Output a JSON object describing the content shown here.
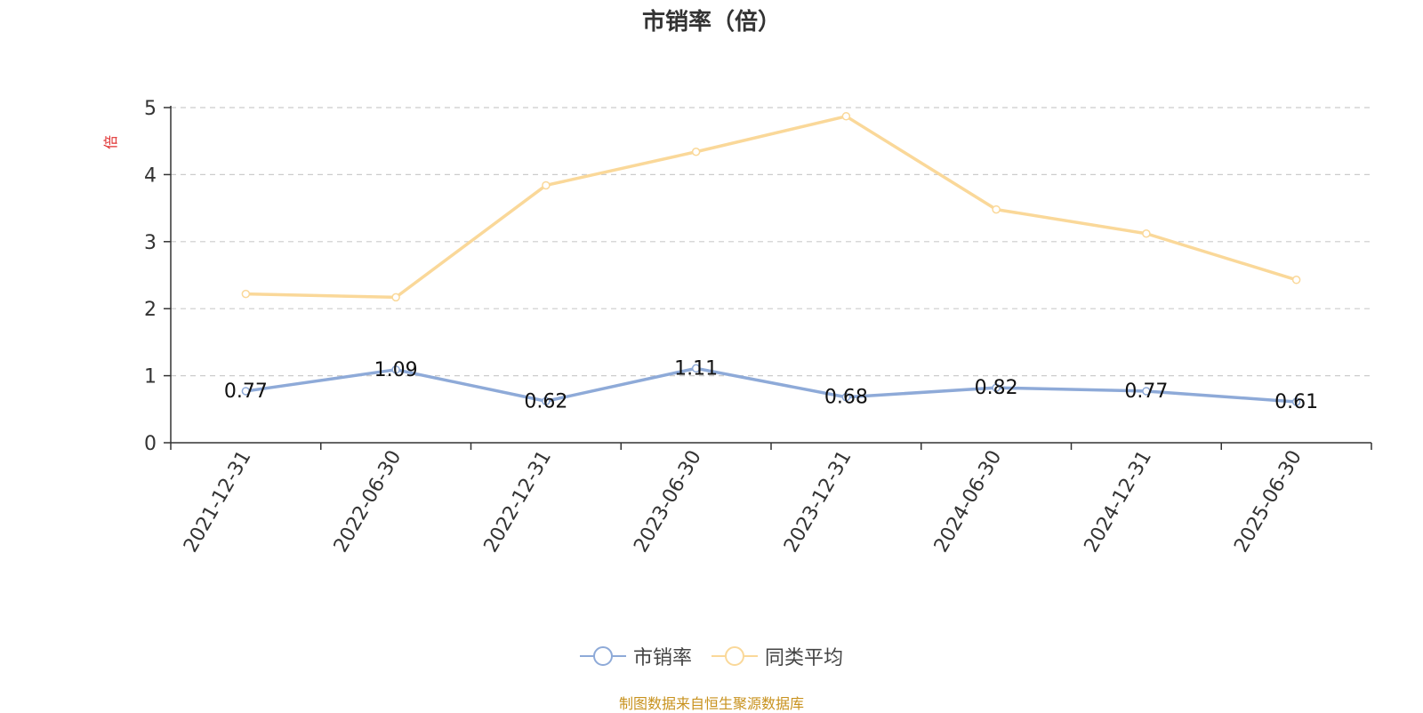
{
  "chart_data": {
    "type": "line",
    "title": "市销率（倍）",
    "ylabel": "倍",
    "xlabel": "",
    "ylim": [
      0,
      5
    ],
    "yticks": [
      "0",
      "1",
      "2",
      "3",
      "4",
      "5"
    ],
    "categories": [
      "2021-12-31",
      "2022-06-30",
      "2022-12-31",
      "2023-06-30",
      "2023-12-31",
      "2024-06-30",
      "2024-12-31",
      "2025-06-30"
    ],
    "series": [
      {
        "name": "市销率",
        "color": "#8eaad8",
        "values": [
          0.77,
          1.09,
          0.62,
          1.11,
          0.68,
          0.82,
          0.77,
          0.61
        ],
        "labels": [
          "0.77",
          "1.09",
          "0.62",
          "1.11",
          "0.68",
          "0.82",
          "0.77",
          "0.61"
        ]
      },
      {
        "name": "同类平均",
        "color": "#fad899",
        "values": [
          2.22,
          2.17,
          3.84,
          4.34,
          4.87,
          3.48,
          3.12,
          2.43
        ]
      }
    ],
    "grid": true,
    "legend_position": "bottom-center"
  },
  "footer": "制图数据来自恒生聚源数据库"
}
